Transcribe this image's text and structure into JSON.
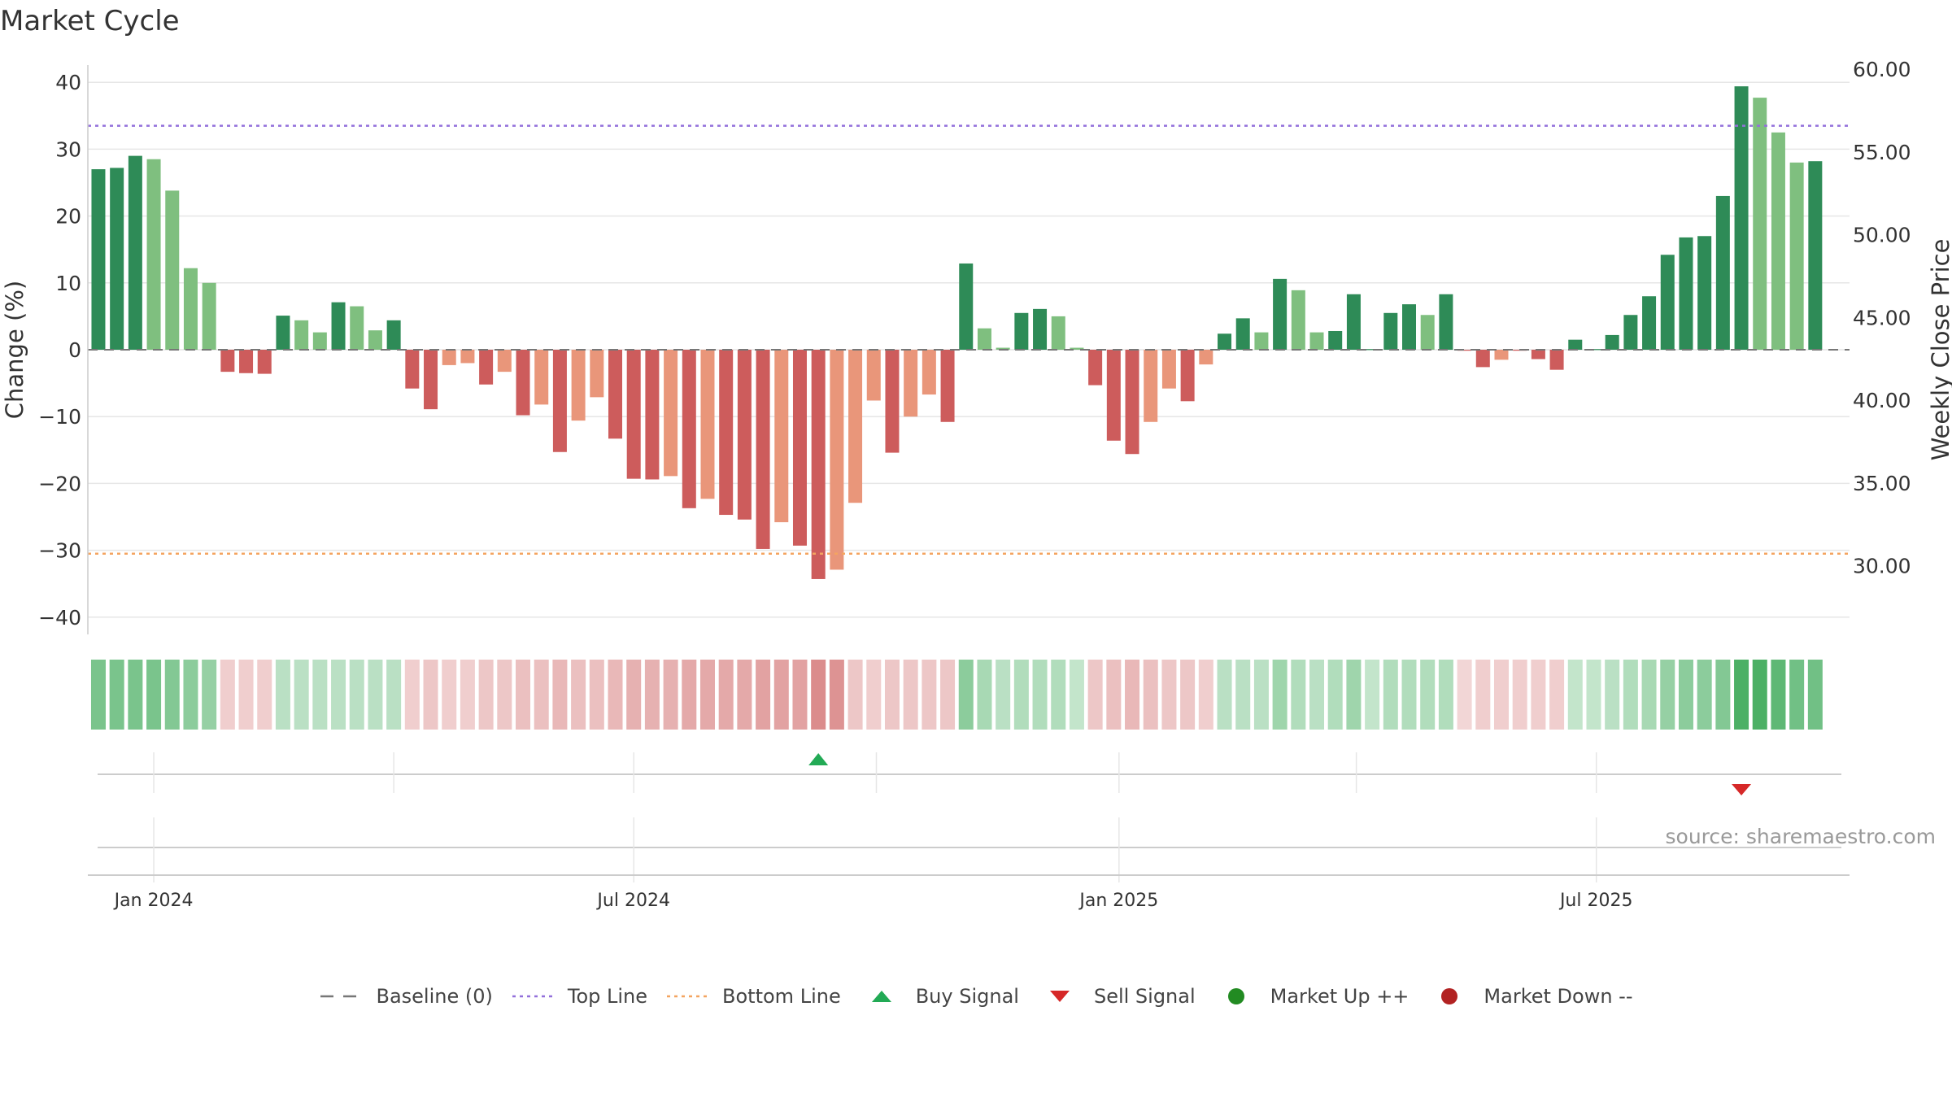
{
  "chart_data": {
    "type": "bar",
    "title": "Market Cycle",
    "ylabel_left": "Change (%)",
    "ylabel_right": "Weekly Close Price",
    "ylim_left": [
      -42.5,
      42.5
    ],
    "ylim_right": [
      26.0,
      60.5
    ],
    "yticks_left": [
      40,
      30,
      20,
      10,
      0,
      -10,
      -20,
      -30,
      -40
    ],
    "yticks_left_labels": [
      "40",
      "30",
      "20",
      "10",
      "0",
      "−10",
      "−20",
      "−30",
      "−40"
    ],
    "yticks_right": [
      60,
      55,
      50,
      45,
      40,
      35,
      30
    ],
    "yticks_right_labels": [
      "60.00",
      "55.00",
      "50.00",
      "45.00",
      "40.00",
      "35.00",
      "30.00"
    ],
    "top_line": 33.5,
    "bottom_line": -30.5,
    "x_start": "2023-12-11",
    "week_days": 7,
    "x_range": [
      "2023-12-07",
      "2025-10-05"
    ],
    "x_ticks": [
      {
        "date": "2024-01-01",
        "label": "Jan 2024"
      },
      {
        "date": "2024-07-01",
        "label": "Jul 2024"
      },
      {
        "date": "2025-01-01",
        "label": "Jan 2025"
      },
      {
        "date": "2025-07-01",
        "label": "Jul 2025"
      }
    ],
    "x_minor_ticks": [
      "2024-04-01",
      "2024-10-01",
      "2025-04-01"
    ],
    "values": [
      27,
      27.2,
      29,
      28.5,
      23.8,
      12.2,
      10,
      -3.3,
      -3.5,
      -3.6,
      5.1,
      4.4,
      2.6,
      7.1,
      6.5,
      2.9,
      4.4,
      -5.8,
      -8.9,
      -2.3,
      -2,
      -5.2,
      -3.3,
      -9.8,
      -8.2,
      -15.3,
      -10.6,
      -7.1,
      -13.3,
      -19.3,
      -19.4,
      -18.9,
      -23.7,
      -22.3,
      -24.7,
      -25.4,
      -29.8,
      -25.8,
      -29.3,
      -34.3,
      -32.9,
      -22.9,
      -7.6,
      -15.4,
      -10,
      -6.7,
      -10.8,
      12.9,
      3.2,
      0.3,
      5.5,
      6.1,
      5,
      0.3,
      -5.3,
      -13.6,
      -15.6,
      -10.8,
      -5.8,
      -7.7,
      -2.2,
      2.4,
      4.7,
      2.6,
      10.6,
      8.9,
      2.6,
      2.8,
      8.3,
      0.1,
      5.5,
      6.8,
      5.2,
      8.3,
      -0.1,
      -2.6,
      -1.5,
      -0.1,
      -1.4,
      -3,
      1.5,
      0.1,
      2.2,
      5.2,
      8,
      14.2,
      16.8,
      17,
      23,
      39.4,
      37.7,
      32.5,
      28,
      28.2
    ],
    "bar_tones": [
      "dark",
      "dark",
      "dark",
      "light",
      "light",
      "light",
      "light",
      "dark",
      "dark",
      "dark",
      "dark",
      "light",
      "light",
      "dark",
      "light",
      "light",
      "dark",
      "dark",
      "dark",
      "light",
      "light",
      "dark",
      "light",
      "dark",
      "light",
      "dark",
      "light",
      "light",
      "dark",
      "dark",
      "dark",
      "light",
      "dark",
      "light",
      "dark",
      "dark",
      "dark",
      "light",
      "dark",
      "dark",
      "light",
      "light",
      "light",
      "dark",
      "light",
      "light",
      "dark",
      "dark",
      "light",
      "light",
      "dark",
      "dark",
      "light",
      "light",
      "dark",
      "dark",
      "dark",
      "light",
      "light",
      "dark",
      "light",
      "dark",
      "dark",
      "light",
      "dark",
      "light",
      "light",
      "dark",
      "dark",
      "dark",
      "dark",
      "dark",
      "light",
      "dark",
      "dark",
      "dark",
      "light",
      "dark",
      "dark",
      "dark",
      "dark",
      "dark",
      "dark",
      "dark",
      "dark",
      "dark",
      "dark",
      "dark",
      "dark",
      "dark",
      "light",
      "light",
      "light",
      "dark"
    ],
    "heat_values": [
      0.55,
      0.55,
      0.55,
      0.55,
      0.5,
      0.45,
      0.4,
      -0.15,
      -0.15,
      -0.15,
      0.2,
      0.2,
      0.2,
      0.2,
      0.2,
      0.2,
      0.2,
      -0.15,
      -0.2,
      -0.15,
      -0.15,
      -0.2,
      -0.2,
      -0.25,
      -0.25,
      -0.3,
      -0.25,
      -0.25,
      -0.3,
      -0.35,
      -0.35,
      -0.35,
      -0.4,
      -0.4,
      -0.4,
      -0.4,
      -0.45,
      -0.45,
      -0.45,
      -0.6,
      -0.55,
      -0.2,
      -0.15,
      -0.2,
      -0.2,
      -0.2,
      -0.2,
      0.45,
      0.3,
      0.2,
      0.25,
      0.25,
      0.25,
      0.15,
      -0.2,
      -0.25,
      -0.3,
      -0.25,
      -0.2,
      -0.2,
      -0.15,
      0.2,
      0.2,
      0.2,
      0.35,
      0.25,
      0.2,
      0.25,
      0.35,
      0.15,
      0.25,
      0.25,
      0.25,
      0.25,
      -0.1,
      -0.15,
      -0.15,
      -0.15,
      -0.15,
      -0.15,
      0.15,
      0.15,
      0.2,
      0.25,
      0.3,
      0.4,
      0.45,
      0.45,
      0.5,
      0.8,
      0.8,
      0.7,
      0.6,
      0.6
    ],
    "buy_signals": [
      39
    ],
    "sell_signals": [
      89
    ],
    "colors": {
      "up_dark": "#2e8b57",
      "up_light": "#7fbf7f",
      "down_dark": "#cd5c5c",
      "down_light": "#e9967a",
      "top_line": "#9370db",
      "bottom_line": "#f4a460",
      "baseline": "#777777",
      "buy": "#22aa55",
      "sell": "#d62828",
      "market_up": "#228b22",
      "market_down": "#b22222",
      "grid": "#e6e6e6",
      "axis_text": "#333333"
    },
    "legend": [
      {
        "label": "Baseline (0)",
        "style": "dash-gray"
      },
      {
        "label": "Top Line",
        "style": "dot-purple"
      },
      {
        "label": "Bottom Line",
        "style": "dot-orange"
      },
      {
        "label": "Buy Signal",
        "style": "triangle-up"
      },
      {
        "label": "Sell Signal",
        "style": "triangle-down"
      },
      {
        "label": "Market Up ++",
        "style": "circle-green"
      },
      {
        "label": "Market Down --",
        "style": "circle-red"
      }
    ]
  },
  "source": "source: sharemaestro.com"
}
